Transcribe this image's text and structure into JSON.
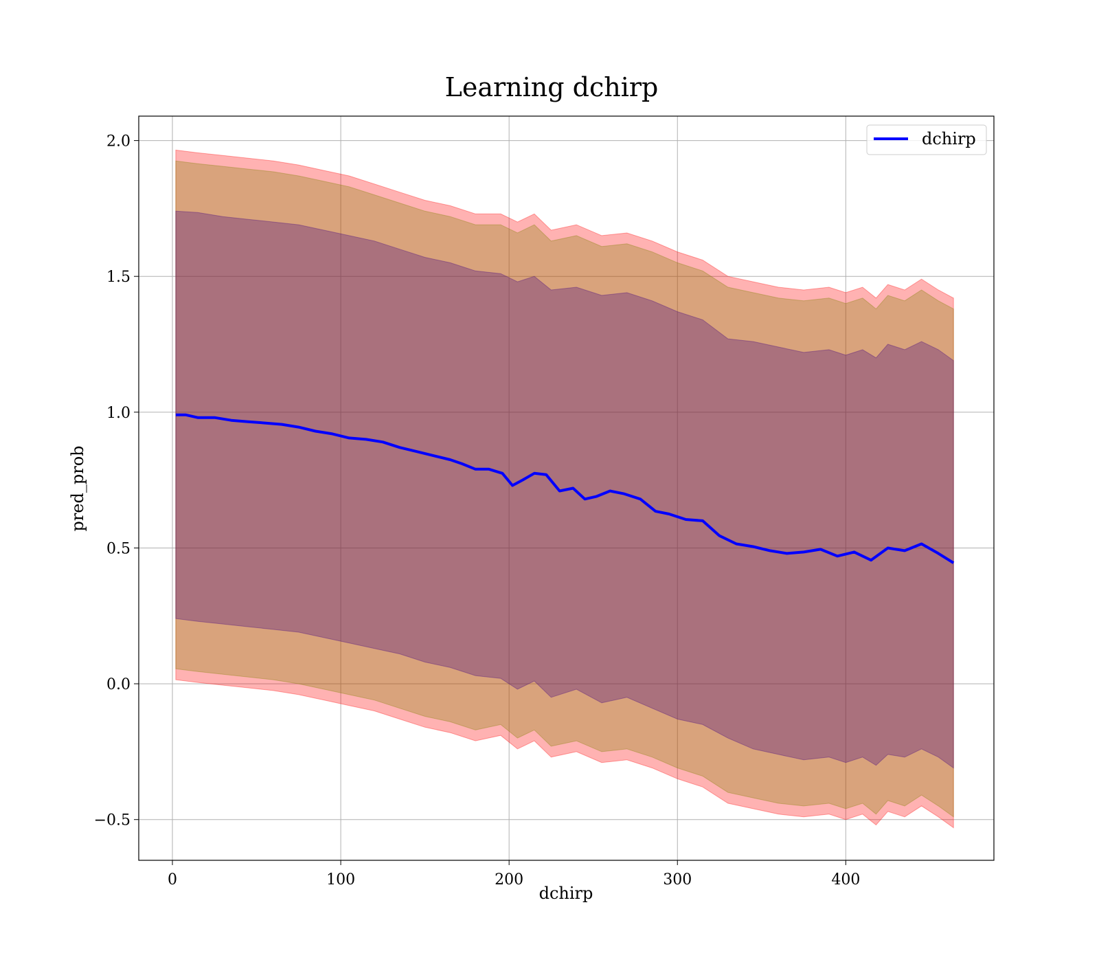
{
  "chart_data": {
    "type": "line",
    "title": "Learning dchirp",
    "xlabel": "dchirp",
    "ylabel": "pred_prob",
    "xlim": [
      -20,
      488
    ],
    "ylim": [
      -0.65,
      2.09
    ],
    "xticks": [
      0,
      100,
      200,
      300,
      400
    ],
    "xtick_labels": [
      "0",
      "100",
      "200",
      "300",
      "400"
    ],
    "yticks": [
      -0.5,
      0.0,
      0.5,
      1.0,
      1.5,
      2.0
    ],
    "ytick_labels": [
      "−0.5",
      "0.0",
      "0.5",
      "1.0",
      "1.5",
      "2.0"
    ],
    "grid": true,
    "legend_position": "top-right",
    "series": [
      {
        "name": "dchirp",
        "color": "#0000ff",
        "x": [
          2,
          8,
          15,
          25,
          35,
          45,
          55,
          65,
          75,
          85,
          95,
          105,
          115,
          125,
          135,
          145,
          155,
          165,
          172,
          180,
          188,
          196,
          202,
          208,
          215,
          222,
          230,
          238,
          245,
          252,
          260,
          268,
          278,
          287,
          295,
          305,
          315,
          325,
          335,
          345,
          355,
          365,
          375,
          385,
          395,
          405,
          415,
          425,
          435,
          445,
          455,
          464
        ],
        "y": [
          0.99,
          0.99,
          0.98,
          0.98,
          0.97,
          0.965,
          0.96,
          0.955,
          0.945,
          0.93,
          0.92,
          0.905,
          0.9,
          0.89,
          0.87,
          0.855,
          0.84,
          0.825,
          0.81,
          0.79,
          0.79,
          0.775,
          0.73,
          0.75,
          0.775,
          0.77,
          0.71,
          0.72,
          0.68,
          0.69,
          0.71,
          0.7,
          0.68,
          0.635,
          0.625,
          0.605,
          0.6,
          0.545,
          0.515,
          0.505,
          0.49,
          0.48,
          0.485,
          0.495,
          0.47,
          0.485,
          0.455,
          0.5,
          0.49,
          0.515,
          0.48,
          0.445
        ]
      }
    ],
    "bands": [
      {
        "description_sd": 3,
        "color": "#ff0000",
        "opacity": 0.3,
        "x": [
          2,
          15,
          30,
          45,
          60,
          75,
          90,
          105,
          120,
          135,
          150,
          165,
          180,
          195,
          205,
          215,
          225,
          240,
          255,
          270,
          285,
          300,
          315,
          330,
          345,
          360,
          375,
          390,
          400,
          410,
          418,
          425,
          435,
          445,
          455,
          464
        ],
        "upper": [
          1.965,
          1.955,
          1.945,
          1.935,
          1.925,
          1.91,
          1.89,
          1.87,
          1.84,
          1.81,
          1.78,
          1.76,
          1.73,
          1.73,
          1.7,
          1.73,
          1.67,
          1.69,
          1.65,
          1.66,
          1.63,
          1.59,
          1.56,
          1.5,
          1.48,
          1.46,
          1.45,
          1.46,
          1.44,
          1.46,
          1.42,
          1.47,
          1.45,
          1.49,
          1.45,
          1.42
        ],
        "lower": [
          0.015,
          0.005,
          -0.005,
          -0.015,
          -0.025,
          -0.04,
          -0.06,
          -0.08,
          -0.1,
          -0.13,
          -0.16,
          -0.18,
          -0.21,
          -0.19,
          -0.24,
          -0.21,
          -0.27,
          -0.25,
          -0.29,
          -0.28,
          -0.31,
          -0.35,
          -0.38,
          -0.44,
          -0.46,
          -0.48,
          -0.49,
          -0.48,
          -0.5,
          -0.48,
          -0.52,
          -0.47,
          -0.49,
          -0.45,
          -0.49,
          -0.53
        ]
      },
      {
        "description_sd": 2,
        "color": "#808000",
        "opacity": 0.3,
        "x": [
          2,
          15,
          30,
          45,
          60,
          75,
          90,
          105,
          120,
          135,
          150,
          165,
          180,
          195,
          205,
          215,
          225,
          240,
          255,
          270,
          285,
          300,
          315,
          330,
          345,
          360,
          375,
          390,
          400,
          410,
          418,
          425,
          435,
          445,
          455,
          464
        ],
        "upper": [
          1.925,
          1.915,
          1.905,
          1.895,
          1.885,
          1.87,
          1.85,
          1.83,
          1.8,
          1.77,
          1.74,
          1.72,
          1.69,
          1.69,
          1.66,
          1.69,
          1.63,
          1.65,
          1.61,
          1.62,
          1.59,
          1.55,
          1.52,
          1.46,
          1.44,
          1.42,
          1.41,
          1.42,
          1.4,
          1.42,
          1.38,
          1.43,
          1.41,
          1.45,
          1.41,
          1.38
        ],
        "lower": [
          0.055,
          0.045,
          0.035,
          0.025,
          0.015,
          0.0,
          -0.02,
          -0.04,
          -0.06,
          -0.09,
          -0.12,
          -0.14,
          -0.17,
          -0.15,
          -0.2,
          -0.17,
          -0.23,
          -0.21,
          -0.25,
          -0.24,
          -0.27,
          -0.31,
          -0.34,
          -0.4,
          -0.42,
          -0.44,
          -0.45,
          -0.44,
          -0.46,
          -0.44,
          -0.48,
          -0.43,
          -0.45,
          -0.41,
          -0.45,
          -0.49
        ]
      },
      {
        "description_sd": 1,
        "color": "#400080",
        "opacity": 0.3,
        "x": [
          2,
          15,
          30,
          45,
          60,
          75,
          90,
          105,
          120,
          135,
          150,
          165,
          180,
          195,
          205,
          215,
          225,
          240,
          255,
          270,
          285,
          300,
          315,
          330,
          345,
          360,
          375,
          390,
          400,
          410,
          418,
          425,
          435,
          445,
          455,
          464
        ],
        "upper": [
          1.74,
          1.735,
          1.72,
          1.71,
          1.7,
          1.69,
          1.67,
          1.65,
          1.63,
          1.6,
          1.57,
          1.55,
          1.52,
          1.51,
          1.48,
          1.5,
          1.45,
          1.46,
          1.43,
          1.44,
          1.41,
          1.37,
          1.34,
          1.27,
          1.26,
          1.24,
          1.22,
          1.23,
          1.21,
          1.23,
          1.2,
          1.25,
          1.23,
          1.26,
          1.23,
          1.19
        ],
        "lower": [
          0.24,
          0.23,
          0.22,
          0.21,
          0.2,
          0.19,
          0.17,
          0.15,
          0.13,
          0.11,
          0.08,
          0.06,
          0.03,
          0.02,
          -0.02,
          0.01,
          -0.05,
          -0.02,
          -0.07,
          -0.05,
          -0.09,
          -0.13,
          -0.15,
          -0.2,
          -0.24,
          -0.26,
          -0.28,
          -0.27,
          -0.29,
          -0.27,
          -0.3,
          -0.26,
          -0.27,
          -0.24,
          -0.27,
          -0.31
        ]
      }
    ]
  }
}
